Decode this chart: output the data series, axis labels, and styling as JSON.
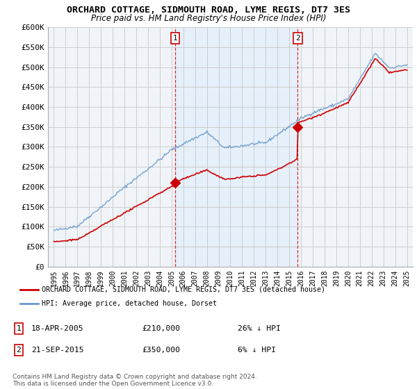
{
  "title": "ORCHARD COTTAGE, SIDMOUTH ROAD, LYME REGIS, DT7 3ES",
  "subtitle": "Price paid vs. HM Land Registry's House Price Index (HPI)",
  "legend_label_red": "ORCHARD COTTAGE, SIDMOUTH ROAD, LYME REGIS, DT7 3ES (detached house)",
  "legend_label_blue": "HPI: Average price, detached house, Dorset",
  "footer": "Contains HM Land Registry data © Crown copyright and database right 2024.\nThis data is licensed under the Open Government Licence v3.0.",
  "annotation1_label": "1",
  "annotation1_date": "18-APR-2005",
  "annotation1_price": "£210,000",
  "annotation1_hpi": "26% ↓ HPI",
  "annotation2_label": "2",
  "annotation2_date": "21-SEP-2015",
  "annotation2_price": "£350,000",
  "annotation2_hpi": "6% ↓ HPI",
  "ylim": [
    0,
    600000
  ],
  "yticks": [
    0,
    50000,
    100000,
    150000,
    200000,
    250000,
    300000,
    350000,
    400000,
    450000,
    500000,
    550000,
    600000
  ],
  "color_red": "#cc0000",
  "color_blue": "#6699cc",
  "color_blue_fill": "#ddeeff",
  "background_color": "#ffffff",
  "grid_color": "#cccccc",
  "sale1_x": 2005.3,
  "sale1_y": 210000,
  "sale2_x": 2015.72,
  "sale2_y": 350000,
  "xlim_start": 1994.5,
  "xlim_end": 2025.5
}
